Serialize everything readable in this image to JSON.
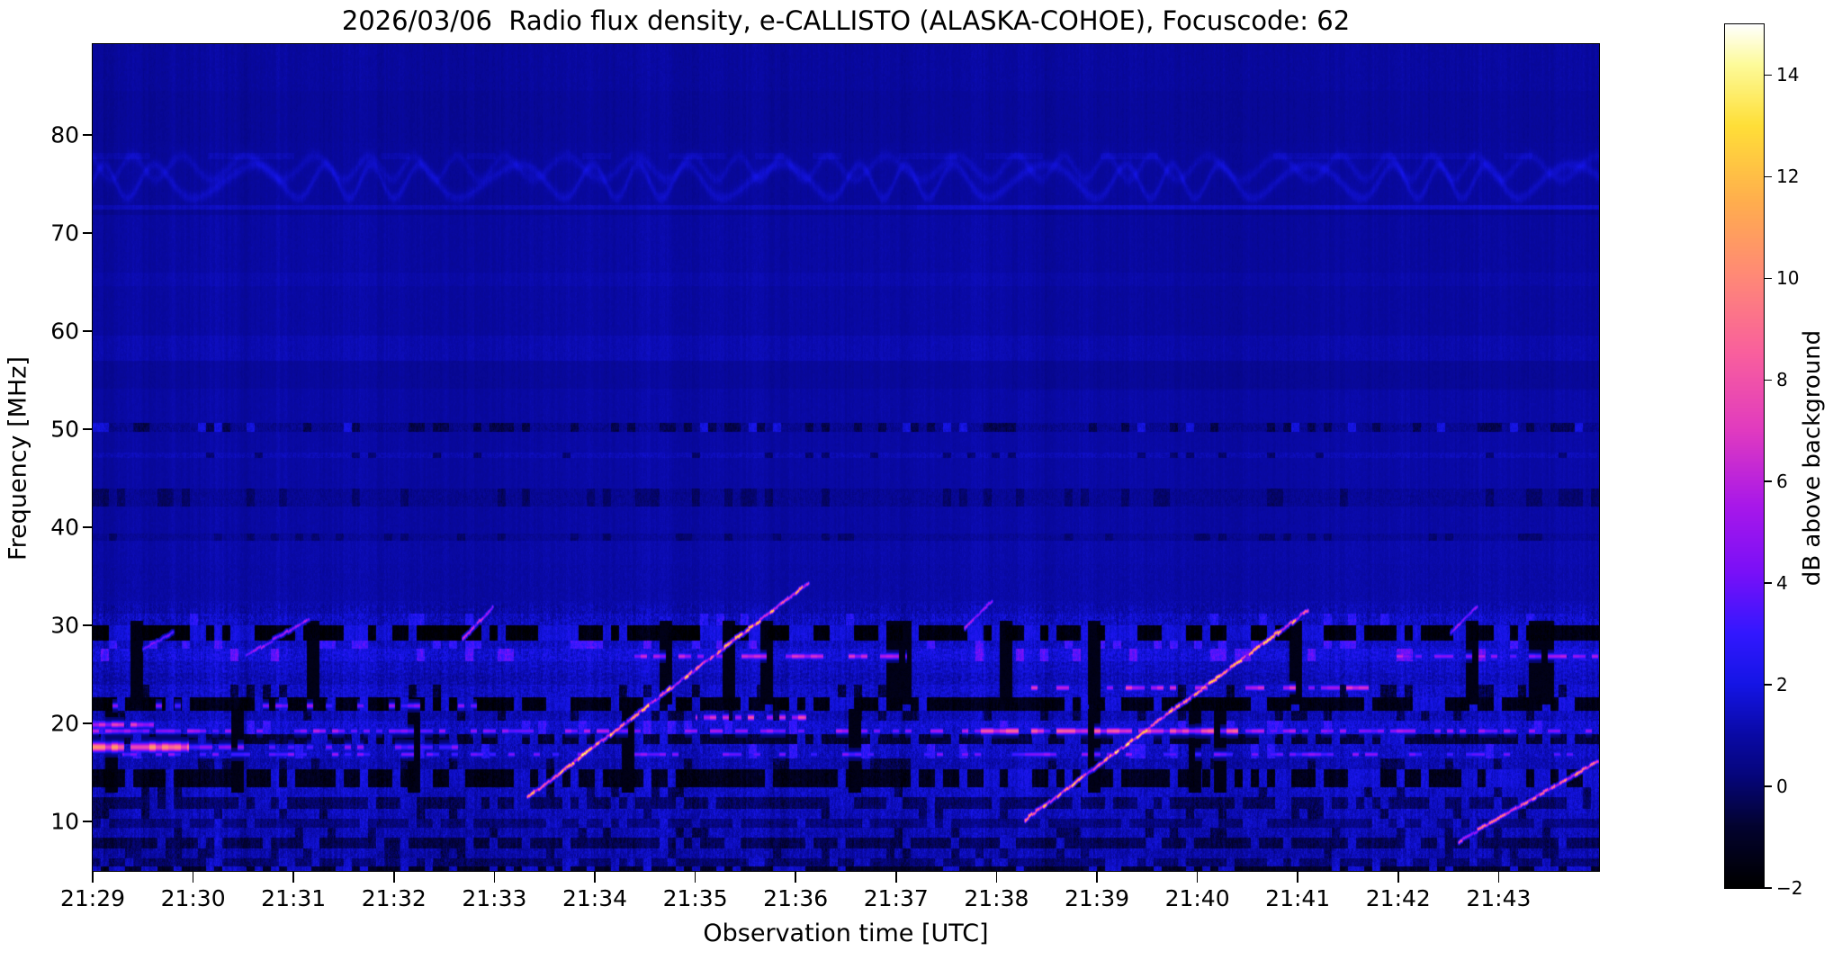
{
  "chart_data": {
    "type": "heatmap",
    "subtype": "radio-spectrogram",
    "title": "2026/03/06  Radio flux density, e-CALLISTO (ALASKA-COHOE), Focuscode: 62",
    "xlabel": "Observation time [UTC]",
    "ylabel": "Frequency [MHz]",
    "x_tick_labels": [
      "21:29",
      "21:30",
      "21:31",
      "21:32",
      "21:33",
      "21:34",
      "21:35",
      "21:36",
      "21:37",
      "21:38",
      "21:39",
      "21:40",
      "21:41",
      "21:42",
      "21:43"
    ],
    "x_tick_minutes": [
      0,
      1,
      2,
      3,
      4,
      5,
      6,
      7,
      8,
      9,
      10,
      11,
      12,
      13,
      14
    ],
    "time_span_minutes": 15,
    "y_ticks": [
      10,
      20,
      30,
      40,
      50,
      60,
      70,
      80
    ],
    "freq_range": [
      4.95,
      89.27
    ],
    "grid": false,
    "colorbar": {
      "label": "dB above background",
      "vmin": -2,
      "vmax": 15,
      "ticks": [
        -2,
        0,
        2,
        4,
        6,
        8,
        10,
        12,
        14
      ],
      "tick_labels": [
        "−2",
        "0",
        "2",
        "4",
        "6",
        "8",
        "10",
        "12",
        "14"
      ]
    },
    "colormap_stops": [
      [
        -2.0,
        "#000000"
      ],
      [
        -0.8,
        "#030330"
      ],
      [
        0.2,
        "#06067c"
      ],
      [
        1.0,
        "#0a0aa6"
      ],
      [
        2.0,
        "#1515e6"
      ],
      [
        3.0,
        "#3318ff"
      ],
      [
        4.2,
        "#7a10f8"
      ],
      [
        5.5,
        "#a818ea"
      ],
      [
        7.0,
        "#e13bc0"
      ],
      [
        8.5,
        "#f95f9e"
      ],
      [
        10.0,
        "#ff8878"
      ],
      [
        11.5,
        "#ffae4e"
      ],
      [
        13.0,
        "#ffdf38"
      ],
      [
        14.2,
        "#fdfb9a"
      ],
      [
        15.0,
        "#ffffff"
      ]
    ],
    "background_level_db": 0.95,
    "rfi_zone_max_freq": 32.2,
    "right_section_start_minute": 9.15,
    "seed": 7,
    "interference_wave_band": {
      "f_low": 72.9,
      "f_high": 79.3,
      "center1": 75.3,
      "amp1": 1.7,
      "center2": 76.7,
      "amp2": 1.2,
      "flat_line": 77.9
    },
    "bands": [
      {
        "lo": 84.5,
        "hi": 89.3,
        "base": -0.1,
        "tex": 0.18
      },
      {
        "lo": 79.2,
        "hi": 84.5,
        "base": -0.2,
        "tex": 0.15
      },
      {
        "lo": 72.9,
        "hi": 79.2,
        "base": -0.15,
        "tex": 0.15
      },
      {
        "lo": 72.4,
        "hi": 72.9,
        "base": 0.35,
        "tex": 0.15
      },
      {
        "lo": 71.9,
        "hi": 72.4,
        "base": -0.3,
        "tex": 0.1
      },
      {
        "lo": 66.0,
        "hi": 71.9,
        "base": 0.0,
        "tex": 0.15
      },
      {
        "lo": 64.6,
        "hi": 66.0,
        "base": 0.15,
        "tex": 0.15
      },
      {
        "lo": 59.6,
        "hi": 64.6,
        "base": 0.0,
        "tex": 0.15
      },
      {
        "lo": 57.0,
        "hi": 59.6,
        "base": 0.22,
        "tex": 0.18
      },
      {
        "lo": 54.2,
        "hi": 57.0,
        "base": -0.15,
        "tex": 0.15
      },
      {
        "lo": 50.7,
        "hi": 54.2,
        "base": 0.02,
        "tex": 0.15
      },
      {
        "lo": 49.8,
        "hi": 50.7,
        "base": -0.35,
        "tex": 0.5,
        "pd": 0.3,
        "dv": -1.3,
        "pb": 0.12,
        "bv": 0.9
      },
      {
        "lo": 47.7,
        "hi": 49.8,
        "base": 0.0,
        "tex": 0.15
      },
      {
        "lo": 47.1,
        "hi": 47.7,
        "base": 0.25,
        "tex": 0.35,
        "pd": 0.15,
        "dv": -0.9
      },
      {
        "lo": 44.0,
        "hi": 47.1,
        "base": 0.0,
        "tex": 0.15
      },
      {
        "lo": 42.2,
        "hi": 44.0,
        "base": -0.3,
        "tex": 0.4,
        "pd": 0.25,
        "dv": -1.0
      },
      {
        "lo": 39.4,
        "hi": 42.2,
        "base": 0.0,
        "tex": 0.18
      },
      {
        "lo": 38.7,
        "hi": 39.4,
        "base": -0.25,
        "tex": 0.35,
        "pd": 0.2,
        "dv": -0.9
      },
      {
        "lo": 36.3,
        "hi": 38.7,
        "base": 0.1,
        "tex": 0.2
      },
      {
        "lo": 32.5,
        "hi": 36.3,
        "base": 0.05,
        "tex": 0.25
      },
      {
        "lo": 31.2,
        "hi": 32.5,
        "base": 0.15,
        "tex": 0.4
      },
      {
        "lo": 30.0,
        "hi": 31.2,
        "base": 0.45,
        "tex": 0.6,
        "pb": 0.08,
        "bv": 1.6
      },
      {
        "lo": 28.5,
        "hi": 30.0,
        "base": -2.6,
        "tex": 0.35,
        "pb": 0.35,
        "bv": 0.9
      },
      {
        "lo": 27.7,
        "hi": 28.5,
        "base": 0.5,
        "tex": 0.5,
        "pb": 0.2,
        "bv": 2.2
      },
      {
        "lo": 26.4,
        "hi": 27.7,
        "base": 0.8,
        "tex": 0.55,
        "pb": 0.12,
        "bv": 2.6
      },
      {
        "lo": 25.2,
        "hi": 26.4,
        "base": 0.45,
        "tex": 0.45
      },
      {
        "lo": 24.0,
        "hi": 25.2,
        "base": 0.25,
        "tex": 0.45
      },
      {
        "lo": 22.7,
        "hi": 24.0,
        "base": 0.55,
        "tex": 0.5,
        "pd": 0.15,
        "dv": -1.6
      },
      {
        "lo": 21.3,
        "hi": 22.7,
        "base": -2.4,
        "tex": 0.35,
        "pb": 0.28,
        "bv": 0.8
      },
      {
        "lo": 20.3,
        "hi": 21.3,
        "base": 0.3,
        "tex": 0.5,
        "pd": 0.18,
        "dv": -1.4
      },
      {
        "lo": 18.9,
        "hi": 20.3,
        "base": 0.7,
        "tex": 0.6,
        "pb": 0.1,
        "bv": 2.0
      },
      {
        "lo": 17.9,
        "hi": 18.9,
        "base": -1.7,
        "tex": 0.4,
        "pb": 0.25,
        "bv": 0.6
      },
      {
        "lo": 16.5,
        "hi": 17.9,
        "base": 0.45,
        "tex": 0.55,
        "pb": 0.1,
        "bv": 1.8
      },
      {
        "lo": 15.4,
        "hi": 16.5,
        "base": 0.2,
        "tex": 0.5,
        "pd": 0.15,
        "dv": -1.3
      },
      {
        "lo": 13.5,
        "hi": 15.4,
        "base": -2.2,
        "tex": 0.4,
        "pb": 0.3,
        "bv": 0.7
      },
      {
        "lo": 12.5,
        "hi": 13.5,
        "base": 0.5,
        "tex": 0.5,
        "pd": 0.1,
        "dv": -1.2
      },
      {
        "lo": 11.3,
        "hi": 12.5,
        "base": -1.1,
        "tex": 0.45,
        "pb": 0.25,
        "bv": 0.5
      },
      {
        "lo": 10.3,
        "hi": 11.3,
        "base": 0.35,
        "tex": 0.5,
        "pd": 0.12,
        "dv": -1.2
      },
      {
        "lo": 9.4,
        "hi": 10.3,
        "base": -0.7,
        "tex": 0.45,
        "pb": 0.2,
        "bv": 0.5
      },
      {
        "lo": 8.4,
        "hi": 9.4,
        "base": 0.25,
        "tex": 0.5,
        "pd": 0.15,
        "dv": -1.2
      },
      {
        "lo": 7.3,
        "hi": 8.4,
        "base": -1.3,
        "tex": 0.4,
        "pb": 0.2,
        "bv": 0.5
      },
      {
        "lo": 6.3,
        "hi": 7.3,
        "base": 0.15,
        "tex": 0.5,
        "pd": 0.15,
        "dv": -1.1
      },
      {
        "lo": 5.5,
        "hi": 6.3,
        "base": -0.9,
        "tex": 0.45,
        "pb": 0.2,
        "bv": 0.4
      },
      {
        "lo": 4.9,
        "hi": 5.5,
        "base": -1.9,
        "tex": 0.35,
        "pb": 0.3,
        "bv": 0.6
      }
    ],
    "horizontal_rfi_segments": [
      {
        "t0": 0.0,
        "t1": 0.95,
        "f": 17.6,
        "peak": 9.0,
        "halfw": 0.5,
        "prob": 0.95
      },
      {
        "t0": 0.95,
        "t1": 3.7,
        "f": 17.6,
        "peak": 4.2,
        "halfw": 0.35,
        "prob": 0.5
      },
      {
        "t0": 0.0,
        "t1": 15.0,
        "f": 19.25,
        "peak": 5.0,
        "halfw": 0.3,
        "prob": 0.5
      },
      {
        "t0": 8.7,
        "t1": 11.4,
        "f": 19.25,
        "peak": 7.5,
        "halfw": 0.35,
        "prob": 0.65
      },
      {
        "t0": 0.3,
        "t1": 15.0,
        "f": 16.9,
        "peak": 4.2,
        "halfw": 0.28,
        "prob": 0.38
      },
      {
        "t0": 5.35,
        "t1": 8.1,
        "f": 26.9,
        "peak": 5.8,
        "halfw": 0.32,
        "prob": 0.55
      },
      {
        "t0": 9.35,
        "t1": 12.7,
        "f": 23.7,
        "peak": 6.2,
        "halfw": 0.32,
        "prob": 0.5
      },
      {
        "t0": 12.9,
        "t1": 15.0,
        "f": 26.9,
        "peak": 5.2,
        "halfw": 0.3,
        "prob": 0.4
      },
      {
        "t0": 0.2,
        "t1": 4.0,
        "f": 21.8,
        "peak": 4.5,
        "halfw": 0.3,
        "prob": 0.25
      },
      {
        "t0": 6.0,
        "t1": 7.1,
        "f": 20.6,
        "peak": 6.5,
        "halfw": 0.35,
        "prob": 0.6
      },
      {
        "t0": 0.0,
        "t1": 0.6,
        "f": 19.9,
        "peak": 6.0,
        "halfw": 0.35,
        "prob": 0.7
      }
    ],
    "drifting_bursts": [
      {
        "t0": 0.5,
        "f0": 27.6,
        "t1": 0.8,
        "f1": 29.3,
        "peak": 5.0,
        "hot": []
      },
      {
        "t0": 1.52,
        "f0": 26.9,
        "t1": 2.15,
        "f1": 30.7,
        "peak": 6.5,
        "hot": []
      },
      {
        "t0": 3.68,
        "f0": 28.6,
        "t1": 3.98,
        "f1": 31.9,
        "peak": 7.5,
        "hot": []
      },
      {
        "t0": 4.33,
        "f0": 12.5,
        "t1": 7.12,
        "f1": 34.3,
        "peak": 13.5,
        "hot": [
          [
            0.16,
            0.3
          ],
          [
            0.78,
            0.88
          ]
        ]
      },
      {
        "t0": 8.68,
        "f0": 29.8,
        "t1": 8.95,
        "f1": 32.5,
        "peak": 6.5,
        "hot": []
      },
      {
        "t0": 9.28,
        "f0": 10.2,
        "t1": 12.1,
        "f1": 31.6,
        "peak": 13.5,
        "hot": [
          [
            0.3,
            0.44
          ],
          [
            0.8,
            0.9
          ]
        ]
      },
      {
        "t0": 13.52,
        "f0": 29.3,
        "t1": 13.78,
        "f1": 32.0,
        "peak": 6.5,
        "hot": []
      },
      {
        "t0": 13.6,
        "f0": 8.0,
        "t1": 15.05,
        "f1": 16.6,
        "peak": 11.0,
        "hot": [
          [
            0.72,
            0.86
          ]
        ]
      }
    ]
  }
}
